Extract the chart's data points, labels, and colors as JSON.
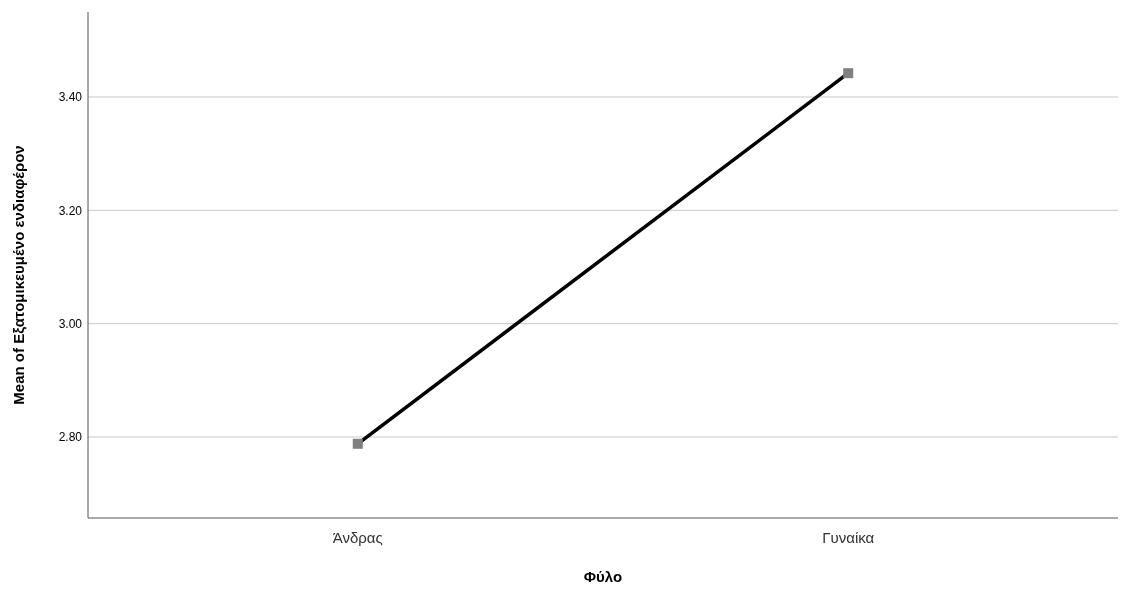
{
  "chart_data": {
    "type": "line",
    "xlabel": "Φύλο",
    "ylabel": "Mean of Εξατομικευμένο ενδιαφέρον",
    "categories": [
      "Άνδρας",
      "Γυναίκα"
    ],
    "series": [
      {
        "color": "#000000",
        "values": [
          2.788,
          3.442
        ]
      }
    ],
    "marker": "square",
    "line_style": "solid",
    "grid": "y",
    "ylim": [
      2.657,
      3.55
    ],
    "yticks": [
      {
        "value": 2.8,
        "label": "2.80"
      },
      {
        "value": 3.0,
        "label": "3.00"
      },
      {
        "value": 3.2,
        "label": "3.20"
      },
      {
        "value": 3.4,
        "label": "3.40"
      }
    ]
  }
}
